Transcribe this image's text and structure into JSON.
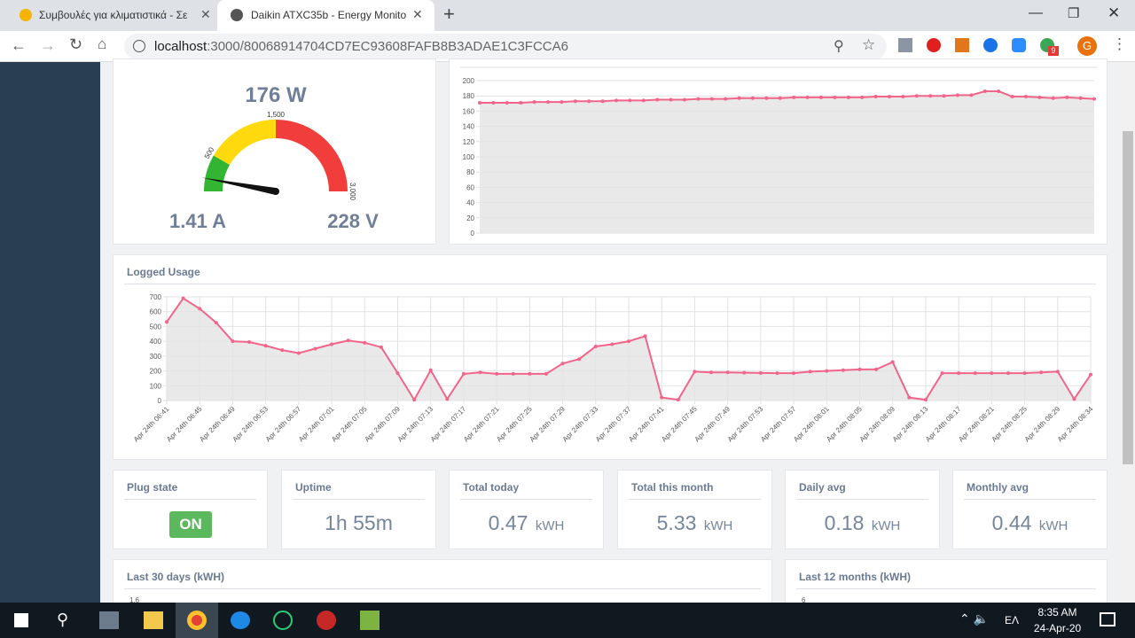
{
  "browser": {
    "tabs": [
      "Συμβουλές για κλιματιστικά - Σε",
      "Daikin ATXC35b - Energy Monito"
    ],
    "url_host": "localhost",
    "url_rest": ":3000/80068914704CD7EC93608FAFB8B3ADAE1C3FCCA6",
    "profile": "G",
    "badge": "9"
  },
  "chart_data": [
    {
      "type": "gauge",
      "value": 176,
      "value_label": "176 W",
      "range": [
        0,
        3000
      ],
      "ticks": [
        500,
        {
          "value": 1500,
          "label": "1,500"
        },
        {
          "value": 3000,
          "label": "3,000"
        }
      ],
      "bands": [
        {
          "from": 0,
          "to": 500,
          "color": "#33b533"
        },
        {
          "from": 500,
          "to": 1500,
          "color": "#fdd90e"
        },
        {
          "from": 1500,
          "to": 3000,
          "color": "#f23d3d"
        }
      ],
      "readings": [
        "1.41 A",
        "228 V"
      ]
    },
    {
      "type": "line",
      "color": "#f2658b",
      "fill_color": "#e3e3e3",
      "grid": "y",
      "values": [
        171,
        171,
        171,
        171,
        172,
        172,
        172,
        173,
        173,
        173,
        174,
        174,
        174,
        175,
        175,
        175,
        176,
        176,
        176,
        177,
        177,
        177,
        177,
        178,
        178,
        178,
        178,
        178,
        178,
        179,
        179,
        179,
        180,
        180,
        180,
        181,
        181,
        186,
        186,
        179,
        179,
        178,
        177,
        178,
        177,
        176
      ],
      "ylim": [
        0,
        200
      ],
      "yticks": [
        0,
        20,
        40,
        60,
        80,
        100,
        120,
        140,
        160,
        180,
        200
      ]
    },
    {
      "type": "line",
      "title": "Logged Usage",
      "color": "#f2658b",
      "fill_color": "#e3e3e3",
      "grid": "both",
      "categories": [
        "Apr 24th 06:41",
        null,
        "Apr 24th 06:45",
        null,
        "Apr 24th 06:49",
        null,
        "Apr 24th 06:53",
        null,
        "Apr 24th 06:57",
        null,
        "Apr 24th 07:01",
        null,
        "Apr 24th 07:05",
        null,
        "Apr 24th 07:09",
        null,
        "Apr 24th 07:13",
        null,
        "Apr 24th 07:17",
        null,
        "Apr 24th 07:21",
        null,
        "Apr 24th 07:25",
        null,
        "Apr 24th 07:29",
        null,
        "Apr 24th 07:33",
        null,
        "Apr 24th 07:37",
        null,
        "Apr 24th 07:41",
        null,
        "Apr 24th 07:45",
        null,
        "Apr 24th 07:49",
        null,
        "Apr 24th 07:53",
        null,
        "Apr 24th 07:57",
        null,
        "Apr 24th 08:01",
        null,
        "Apr 24th 08:05",
        null,
        "Apr 24th 08:09",
        null,
        "Apr 24th 08:13",
        null,
        "Apr 24th 08:17",
        null,
        "Apr 24th 08:21",
        null,
        "Apr 24th 08:25",
        null,
        "Apr 24th 08:29",
        null,
        "Apr 24th 08:34"
      ],
      "values": [
        530,
        690,
        620,
        525,
        400,
        395,
        370,
        340,
        320,
        350,
        380,
        405,
        390,
        360,
        185,
        5,
        205,
        10,
        180,
        190,
        180,
        180,
        180,
        180,
        250,
        280,
        365,
        380,
        400,
        435,
        20,
        5,
        195,
        190,
        190,
        188,
        186,
        185,
        185,
        195,
        200,
        205,
        210,
        210,
        260,
        20,
        5,
        185,
        185,
        185,
        185,
        185,
        185,
        190,
        195,
        10,
        175
      ],
      "ylim": [
        0,
        700
      ],
      "yticks": [
        0,
        100,
        200,
        300,
        400,
        500,
        600,
        700
      ]
    }
  ],
  "stats": [
    {
      "title": "Plug state",
      "value": "ON"
    },
    {
      "title": "Uptime",
      "value": "1h 55m"
    },
    {
      "title": "Total today",
      "value": "0.47",
      "unit": "kWH"
    },
    {
      "title": "Total this month",
      "value": "5.33",
      "unit": "kWH"
    },
    {
      "title": "Daily avg",
      "value": "0.18",
      "unit": "kWH"
    },
    {
      "title": "Monthly avg",
      "value": "0.44",
      "unit": "kWH"
    }
  ],
  "bottom": [
    {
      "title": "Last 30 days (kWH)",
      "tick": "1.6"
    },
    {
      "title": "Last 12 months (kWH)",
      "tick": "6"
    }
  ],
  "taskbar": {
    "lang": "ΕΛ",
    "time": "8:35 AM",
    "date": "24-Apr-20"
  }
}
